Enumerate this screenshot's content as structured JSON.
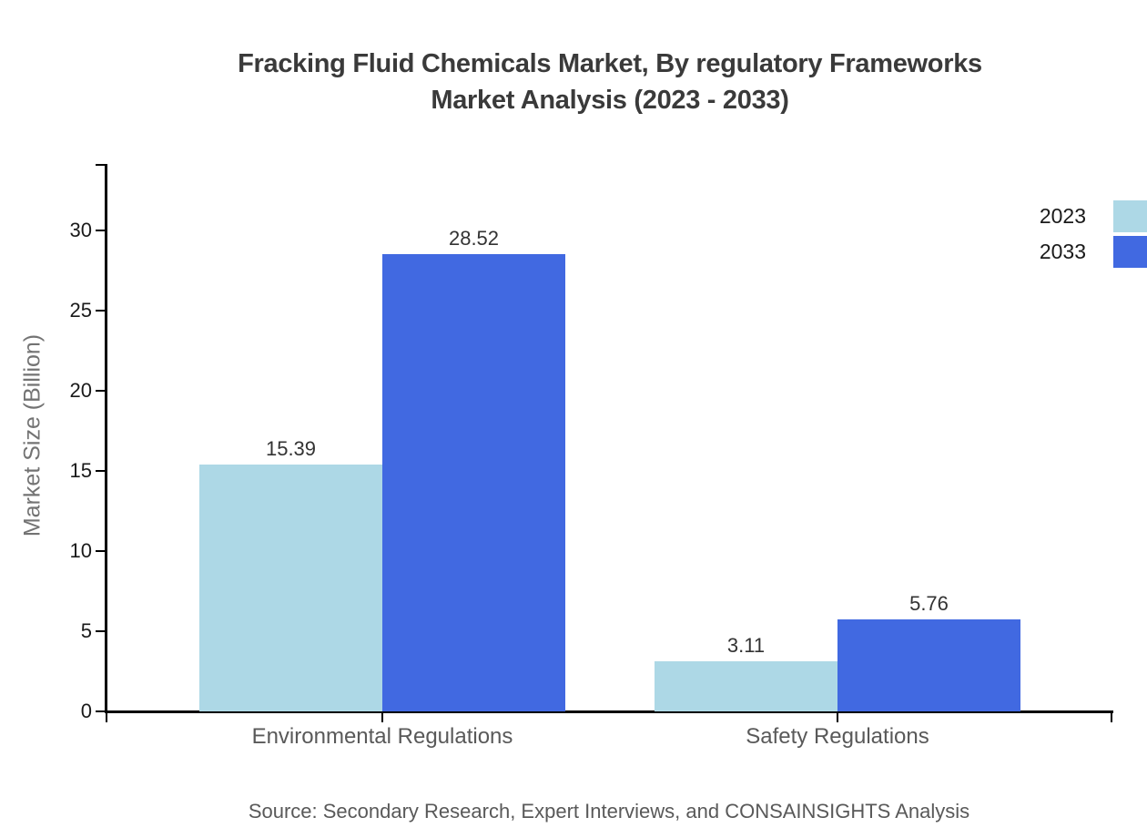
{
  "title": {
    "line1": "Fracking Fluid Chemicals Market, By regulatory Frameworks",
    "line2": "Market Analysis (2023 - 2033)"
  },
  "source": "Source: Secondary Research, Expert Interviews, and CONSAINSIGHTS Analysis",
  "colors": {
    "series_2023": "#ADD8E6",
    "series_2033": "#4169E1",
    "axis": "#000000",
    "title_text": "#3a3a3a",
    "gray_label": "#595959"
  },
  "chart_data": {
    "type": "bar",
    "title": "Fracking Fluid Chemicals Market, By regulatory Frameworks Market Analysis (2023 - 2033)",
    "categories": [
      "Environmental Regulations",
      "Safety Regulations"
    ],
    "series": [
      {
        "name": "2023",
        "color": "#ADD8E6",
        "values": [
          15.39,
          3.11
        ]
      },
      {
        "name": "2033",
        "color": "#4169E1",
        "values": [
          28.52,
          5.76
        ]
      }
    ],
    "xlabel": "",
    "ylabel": "Market Size (Billion)",
    "ylim": [
      0,
      34
    ],
    "yticks": [
      0,
      5,
      10,
      15,
      20,
      25,
      30
    ],
    "grid": false,
    "value_labels": true,
    "legend_position": "top-right"
  }
}
